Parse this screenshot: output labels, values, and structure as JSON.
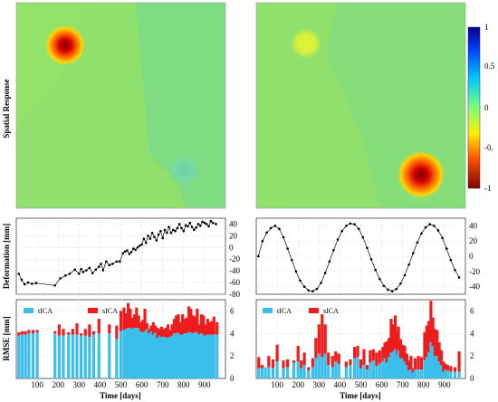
{
  "colors": {
    "tica": "#3bbfea",
    "sica": "#ee1c1c",
    "line": "#000000",
    "bg_field": "#8fe06c"
  },
  "chart_data": [
    {
      "type": "heatmap",
      "panel": "spatial-left",
      "ylabel": "Spatial Response",
      "colorbar": {
        "range": [
          -1,
          1
        ],
        "ticks": [
          "1",
          "0.5",
          "0",
          "-0.",
          "-1"
        ]
      },
      "sources": [
        {
          "name": "blob-1",
          "x": 0.22,
          "y": 0.2,
          "value": -1.0
        },
        {
          "name": "blob-2",
          "x": 0.75,
          "y": 0.82,
          "value": 0.25
        }
      ]
    },
    {
      "type": "heatmap",
      "panel": "spatial-right",
      "sources": [
        {
          "name": "blob-1",
          "x": 0.24,
          "y": 0.2,
          "value": -0.35
        },
        {
          "name": "blob-2",
          "x": 0.82,
          "y": 0.83,
          "value": -1.0
        }
      ]
    },
    {
      "type": "line",
      "panel": "deformation-left",
      "ylabel": "Deformation [mm]",
      "xlim": [
        0,
        1000
      ],
      "ylim": [
        -80,
        50
      ],
      "yticks": [
        40,
        20,
        0,
        -20,
        -40,
        -60,
        -80
      ],
      "x": [
        12,
        25,
        40,
        56,
        75,
        95,
        185,
        210,
        235,
        255,
        280,
        300,
        310,
        320,
        335,
        350,
        365,
        380,
        395,
        405,
        415,
        430,
        445,
        460,
        480,
        495,
        510,
        520,
        530,
        540,
        550,
        560,
        570,
        580,
        590,
        600,
        610,
        620,
        630,
        640,
        650,
        660,
        670,
        680,
        690,
        700,
        710,
        720,
        730,
        740,
        750,
        760,
        770,
        780,
        790,
        800,
        810,
        820,
        830,
        840,
        850,
        860,
        870,
        880,
        890,
        900,
        910,
        920,
        930,
        940,
        955
      ],
      "y": [
        -45,
        -55,
        -63,
        -60,
        -62,
        -61,
        -65,
        -53,
        -48,
        -45,
        -38,
        -45,
        -37,
        -42,
        -39,
        -35,
        -44,
        -38,
        -33,
        -28,
        -39,
        -24,
        -30,
        -28,
        -24,
        -24,
        -10,
        -7,
        -5,
        -11,
        -8,
        -2,
        -4,
        0,
        3,
        5,
        15,
        8,
        20,
        15,
        25,
        18,
        12,
        22,
        28,
        16,
        30,
        25,
        35,
        25,
        30,
        28,
        33,
        40,
        33,
        28,
        38,
        36,
        42,
        35,
        30,
        34,
        40,
        37,
        44,
        42,
        40,
        36,
        45,
        42,
        40
      ]
    },
    {
      "type": "line",
      "panel": "deformation-right",
      "xlim": [
        0,
        1000
      ],
      "ylim": [
        -50,
        50
      ],
      "yticks": [
        40,
        20,
        0,
        -20,
        -40
      ],
      "x": [
        10,
        30,
        50,
        70,
        90,
        110,
        130,
        150,
        170,
        190,
        210,
        230,
        250,
        270,
        290,
        310,
        330,
        350,
        370,
        390,
        410,
        430,
        450,
        470,
        490,
        510,
        530,
        550,
        570,
        590,
        610,
        630,
        650,
        670,
        690,
        710,
        730,
        750,
        770,
        790,
        810,
        830,
        850,
        870,
        890,
        910,
        930,
        950,
        970
      ],
      "y": [
        0,
        20,
        31,
        37,
        40,
        36,
        25,
        10,
        -5,
        -20,
        -32,
        -40,
        -45,
        -46,
        -43,
        -35,
        -22,
        -7,
        8,
        22,
        33,
        40,
        43,
        42,
        36,
        25,
        11,
        -4,
        -18,
        -30,
        -39,
        -44,
        -46,
        -43,
        -36,
        -25,
        -11,
        4,
        18,
        30,
        38,
        42,
        40,
        34,
        24,
        10,
        -5,
        -18,
        -28
      ]
    },
    {
      "type": "bar",
      "panel": "rmse-left",
      "ylabel": "RMSE [mm]",
      "xlabel": "Time [days]",
      "xlim": [
        0,
        1000
      ],
      "ylim": [
        0,
        7
      ],
      "xticks": [
        100,
        200,
        300,
        400,
        500,
        600,
        700,
        800,
        900
      ],
      "yticks": [
        0,
        2,
        4,
        6
      ],
      "legend": [
        "tICA",
        "sICA"
      ],
      "x": [
        12,
        28,
        44,
        60,
        80,
        100,
        185,
        205,
        225,
        250,
        270,
        290,
        310,
        330,
        350,
        370,
        395,
        445,
        480,
        500,
        515,
        525,
        535,
        545,
        555,
        565,
        575,
        585,
        595,
        605,
        615,
        625,
        635,
        645,
        655,
        665,
        675,
        685,
        695,
        705,
        715,
        725,
        735,
        745,
        755,
        765,
        775,
        785,
        795,
        805,
        815,
        825,
        835,
        845,
        855,
        865,
        875,
        885,
        895,
        905,
        915,
        925,
        935,
        945,
        960
      ],
      "series": [
        {
          "name": "tICA",
          "values": [
            3.8,
            3.9,
            3.9,
            4.0,
            4.0,
            4.1,
            4.0,
            3.8,
            3.8,
            3.9,
            3.9,
            3.9,
            3.8,
            3.8,
            3.7,
            3.9,
            4.0,
            4.0,
            3.5,
            4.2,
            4.3,
            4.4,
            4.5,
            4.5,
            4.4,
            4.5,
            4.5,
            4.5,
            4.2,
            4.1,
            4.2,
            4.4,
            4.0,
            4.2,
            3.9,
            4.1,
            3.6,
            3.8,
            3.7,
            3.7,
            3.7,
            3.6,
            3.7,
            3.8,
            4.0,
            4.0,
            4.1,
            3.9,
            3.9,
            4.0,
            4.0,
            4.1,
            4.1,
            4.0,
            4.1,
            4.1,
            3.9,
            4.0,
            3.9,
            3.8,
            3.9,
            3.9,
            3.9,
            3.9,
            3.9
          ]
        },
        {
          "name": "sICA",
          "values": [
            4.1,
            4.2,
            4.2,
            4.3,
            4.3,
            4.3,
            4.2,
            4.8,
            4.4,
            4.1,
            4.4,
            4.9,
            4.0,
            4.4,
            4.8,
            4.2,
            5.3,
            4.8,
            4.7,
            6.0,
            6.3,
            5.8,
            6.7,
            6.2,
            5.4,
            5.7,
            6.3,
            5.6,
            5.0,
            5.2,
            6.2,
            4.9,
            4.4,
            4.7,
            5.0,
            4.7,
            4.5,
            4.4,
            4.6,
            4.4,
            4.5,
            4.8,
            4.3,
            4.8,
            5.3,
            5.6,
            5.7,
            5.0,
            5.7,
            5.3,
            5.4,
            6.4,
            6.2,
            5.6,
            5.5,
            6.2,
            4.8,
            5.7,
            5.6,
            4.8,
            5.3,
            5.0,
            5.1,
            5.5,
            5.0
          ]
        }
      ]
    },
    {
      "type": "bar",
      "panel": "rmse-right",
      "xlabel": "Time [days]",
      "xlim": [
        0,
        1000
      ],
      "ylim": [
        0,
        7
      ],
      "xticks": [
        100,
        200,
        300,
        400,
        500,
        600,
        700,
        800,
        900
      ],
      "yticks": [
        0,
        2,
        4,
        6
      ],
      "legend": [
        "tICA",
        "sICA"
      ],
      "x": [
        12,
        28,
        44,
        60,
        80,
        100,
        130,
        150,
        180,
        200,
        215,
        230,
        250,
        270,
        285,
        300,
        315,
        330,
        345,
        365,
        380,
        395,
        430,
        450,
        470,
        485,
        500,
        515,
        530,
        545,
        560,
        575,
        590,
        605,
        615,
        625,
        635,
        645,
        655,
        665,
        675,
        680,
        690,
        700,
        710,
        720,
        730,
        740,
        750,
        760,
        775,
        790,
        805,
        815,
        825,
        835,
        845,
        855,
        865,
        875,
        885,
        895,
        905,
        915,
        930,
        950,
        970
      ],
      "series": [
        {
          "name": "tICA",
          "values": [
            0.9,
            0.9,
            1.0,
            1.0,
            0.9,
            1.5,
            0.9,
            1.0,
            1.4,
            1.5,
            0.9,
            1.2,
            0.7,
            1.0,
            1.8,
            2.2,
            1.9,
            2.2,
            1.2,
            1.0,
            1.5,
            1.3,
            1.0,
            1.2,
            1.8,
            1.9,
            0.9,
            1.2,
            0.8,
            1.4,
            1.6,
            1.1,
            1.3,
            1.5,
            1.8,
            1.4,
            1.9,
            2.3,
            2.4,
            2.6,
            2.1,
            2.5,
            1.8,
            1.8,
            1.5,
            1.2,
            0.7,
            0.8,
            0.5,
            0.8,
            0.8,
            0.8,
            1.6,
            1.9,
            2.3,
            3.2,
            2.9,
            2.0,
            2.0,
            1.5,
            1.2,
            0.6,
            0.8,
            0.7,
            0.6,
            0.6,
            0.6
          ]
        },
        {
          "name": "sICA",
          "values": [
            1.9,
            1.2,
            1.0,
            2.0,
            1.7,
            3.0,
            1.6,
            1.7,
            1.6,
            2.9,
            1.6,
            2.3,
            1.0,
            1.8,
            3.6,
            4.8,
            5.7,
            4.8,
            2.3,
            2.0,
            2.4,
            2.2,
            1.5,
            1.7,
            2.8,
            2.9,
            1.7,
            2.6,
            1.2,
            2.5,
            2.6,
            2.3,
            2.5,
            2.8,
            3.2,
            3.3,
            3.6,
            5.3,
            4.8,
            5.6,
            4.2,
            4.6,
            3.5,
            3.0,
            2.9,
            2.2,
            1.6,
            2.0,
            0.9,
            1.8,
            2.0,
            1.9,
            4.1,
            4.7,
            5.1,
            6.9,
            5.4,
            4.4,
            4.3,
            3.2,
            2.5,
            1.5,
            1.3,
            1.2,
            1.1,
            1.0,
            2.4
          ]
        }
      ]
    }
  ]
}
